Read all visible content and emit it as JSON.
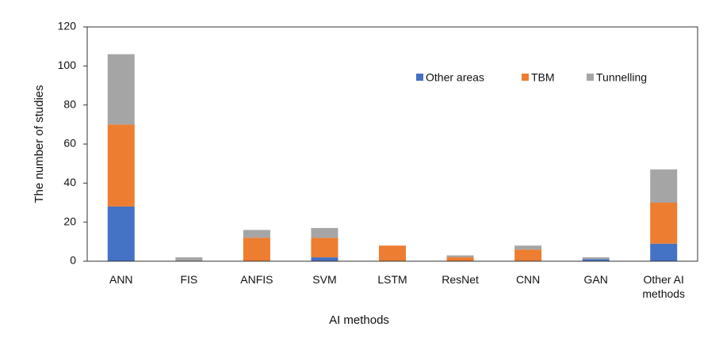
{
  "chart_data": {
    "type": "stacked_bar",
    "x_label": "AI methods",
    "y_label": "The number of studies",
    "categories": [
      "ANN",
      "FIS",
      "ANFIS",
      "SVM",
      "LSTM",
      "ResNet",
      "CNN",
      "GAN",
      "Other AI methods"
    ],
    "series": [
      {
        "name": "Other areas",
        "color": "#4472c4",
        "values": [
          28,
          0,
          0,
          2,
          0,
          0,
          0,
          1,
          9
        ]
      },
      {
        "name": "TBM",
        "color": "#ed7d31",
        "values": [
          42,
          0,
          12,
          10,
          8,
          2,
          6,
          0,
          21
        ]
      },
      {
        "name": "Tunnelling",
        "color": "#a5a5a5",
        "values": [
          36,
          2,
          4,
          5,
          0,
          1,
          2,
          1,
          17
        ]
      }
    ],
    "ylim": [
      0,
      120
    ],
    "yticks": [
      0,
      20,
      40,
      60,
      80,
      100,
      120
    ],
    "grid": false,
    "legend": "top-right"
  }
}
